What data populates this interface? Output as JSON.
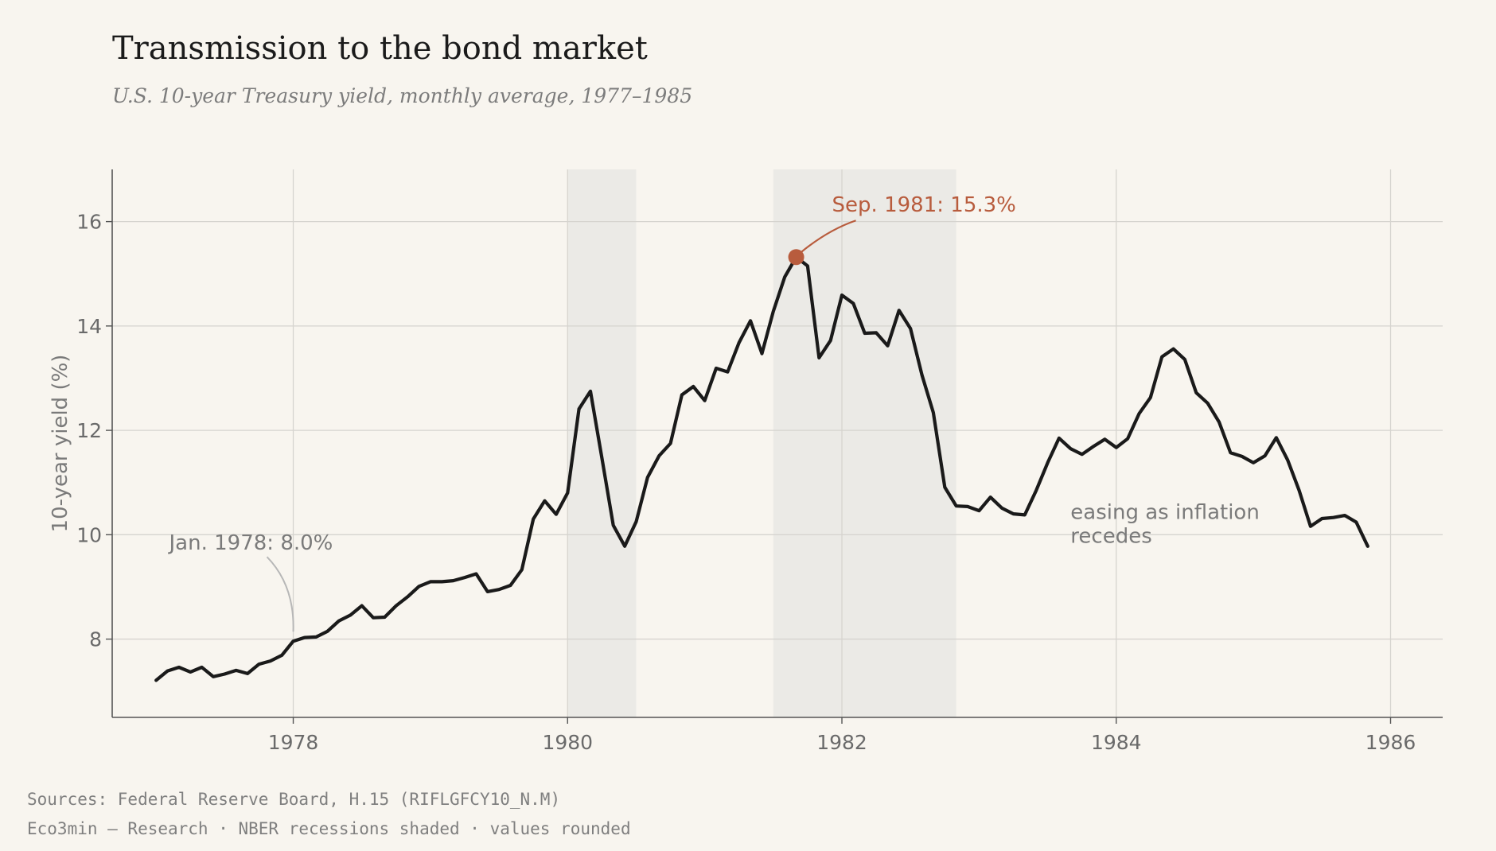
{
  "header": {
    "title": "Transmission to the bond market",
    "subtitle": "U.S. 10-year Treasury yield, monthly average, 1977–1985"
  },
  "footer": {
    "sources": "Sources: Federal Reserve Board, H.15 (RIFLGFCY10_N.M)",
    "note": "Eco3min — Research · NBER recessions shaded · values rounded"
  },
  "colors": {
    "background": "#f8f5ef",
    "line": "#1a1a1a",
    "accent": "#b85c3d",
    "recession_shade": "#ebeae6",
    "grid": "#d6d4cf",
    "muted_text": "#7a7a7a"
  },
  "chart_data": {
    "type": "line",
    "ylabel": "10-year yield (%)",
    "xlabel": "",
    "x_ticks": [
      1978,
      1980,
      1982,
      1984,
      1986
    ],
    "y_ticks": [
      8,
      10,
      12,
      14,
      16
    ],
    "xlim": [
      1976.68,
      1986.38
    ],
    "ylim": [
      6.5,
      17.0
    ],
    "grid": true,
    "recessions": [
      {
        "start": "1980-01",
        "end": "1980-07"
      },
      {
        "start": "1981-07",
        "end": "1982-11"
      }
    ],
    "series": [
      {
        "start": "1977-01",
        "values": [
          7.21,
          7.39,
          7.46,
          7.37,
          7.46,
          7.28,
          7.33,
          7.4,
          7.34,
          7.52,
          7.58,
          7.69,
          7.96,
          8.03,
          8.04,
          8.15,
          8.35,
          8.46,
          8.64,
          8.41,
          8.42,
          8.64,
          8.81,
          9.01,
          9.1,
          9.1,
          9.12,
          9.18,
          9.25,
          8.91,
          8.95,
          9.03,
          9.33,
          10.3,
          10.65,
          10.39,
          10.8,
          12.41,
          12.75,
          11.47,
          10.18,
          9.78,
          10.25,
          11.1,
          11.51,
          11.75,
          12.68,
          12.84,
          12.57,
          13.19,
          13.12,
          13.68,
          14.1,
          13.47,
          14.28,
          14.94,
          15.32,
          15.15,
          13.39,
          13.72,
          14.59,
          14.43,
          13.86,
          13.87,
          13.62,
          14.3,
          13.95,
          13.06,
          12.34,
          10.91,
          10.55,
          10.54,
          10.46,
          10.72,
          10.51,
          10.4,
          10.38,
          10.85,
          11.38,
          11.85,
          11.65,
          11.54,
          11.69,
          11.83,
          11.67,
          11.84,
          12.32,
          12.63,
          13.41,
          13.56,
          13.36,
          12.72,
          12.52,
          12.16,
          11.57,
          11.5,
          11.38,
          11.51,
          11.86,
          11.43,
          10.85,
          10.16,
          10.31,
          10.33,
          10.37,
          10.24,
          9.78
        ]
      }
    ],
    "annotations": [
      {
        "text": "Sep. 1981: 15.3%",
        "date": "1981-09",
        "value": 15.32,
        "style": "highlight"
      },
      {
        "text": "Jan. 1978: 8.0%",
        "date": "1978-01",
        "value": 7.96,
        "style": "muted"
      },
      {
        "lines": [
          "easing as inflation",
          "recedes"
        ],
        "date": "1983-09",
        "value": 10.6,
        "style": "muted"
      }
    ]
  }
}
